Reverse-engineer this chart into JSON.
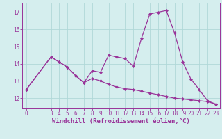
{
  "x_curve": [
    0,
    3,
    4,
    5,
    6,
    7,
    8,
    9,
    10,
    11,
    12,
    13,
    14,
    15,
    16,
    17,
    18,
    19,
    20,
    21,
    22,
    23
  ],
  "y_curve": [
    12.5,
    14.4,
    14.1,
    13.8,
    13.3,
    12.9,
    13.6,
    13.5,
    14.5,
    14.4,
    14.3,
    13.85,
    15.5,
    16.9,
    17.0,
    17.1,
    15.8,
    14.1,
    13.1,
    12.5,
    11.85,
    11.65
  ],
  "x_diag": [
    0,
    3,
    4,
    5,
    6,
    7,
    8,
    9,
    10,
    11,
    12,
    13,
    14,
    15,
    16,
    17,
    18,
    19,
    20,
    21,
    22,
    23
  ],
  "y_diag": [
    12.5,
    14.4,
    14.1,
    13.8,
    13.3,
    12.9,
    13.15,
    13.0,
    12.8,
    12.65,
    12.55,
    12.5,
    12.4,
    12.3,
    12.2,
    12.1,
    12.0,
    11.95,
    11.9,
    11.85,
    11.8,
    11.65
  ],
  "color": "#993399",
  "bg_color": "#d5eeee",
  "grid_color": "#b0d8d8",
  "xlabel": "Windchill (Refroidissement éolien,°C)",
  "xticks": [
    0,
    3,
    4,
    5,
    6,
    7,
    8,
    9,
    10,
    11,
    12,
    13,
    14,
    15,
    16,
    17,
    18,
    19,
    20,
    21,
    22,
    23
  ],
  "yticks": [
    12,
    13,
    14,
    15,
    16,
    17
  ],
  "ylim": [
    11.4,
    17.55
  ],
  "xlim": [
    -0.5,
    23.5
  ],
  "marker": "D",
  "markersize": 2.0,
  "linewidth": 0.9,
  "tick_fontsize": 5.5,
  "xlabel_fontsize": 6.5
}
